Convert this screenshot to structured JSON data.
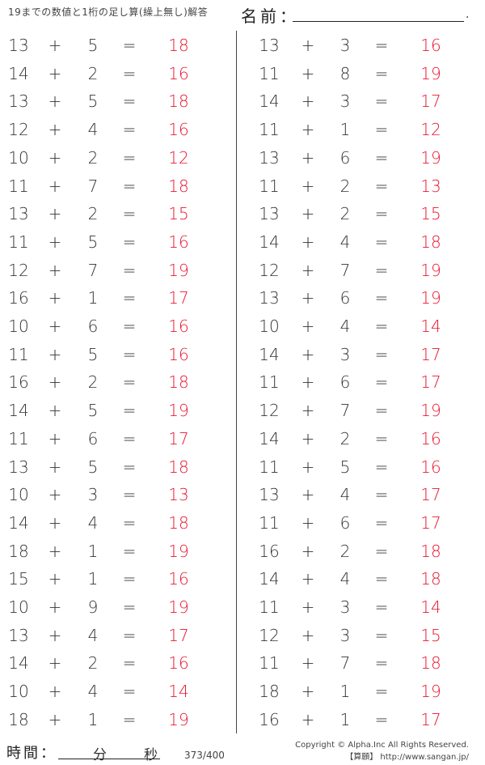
{
  "header": {
    "title": "19までの数値と1桁の足し算(繰上無し)解答",
    "name_label": "名前：",
    "name_end": "."
  },
  "symbols": {
    "plus": "+",
    "equals": "="
  },
  "colors": {
    "answer": "#e8152e",
    "text": "#333333"
  },
  "left": [
    [
      "13",
      "5",
      "18"
    ],
    [
      "14",
      "2",
      "16"
    ],
    [
      "13",
      "5",
      "18"
    ],
    [
      "12",
      "4",
      "16"
    ],
    [
      "10",
      "2",
      "12"
    ],
    [
      "11",
      "7",
      "18"
    ],
    [
      "13",
      "2",
      "15"
    ],
    [
      "11",
      "5",
      "16"
    ],
    [
      "12",
      "7",
      "19"
    ],
    [
      "16",
      "1",
      "17"
    ],
    [
      "10",
      "6",
      "16"
    ],
    [
      "11",
      "5",
      "16"
    ],
    [
      "16",
      "2",
      "18"
    ],
    [
      "14",
      "5",
      "19"
    ],
    [
      "11",
      "6",
      "17"
    ],
    [
      "13",
      "5",
      "18"
    ],
    [
      "10",
      "3",
      "13"
    ],
    [
      "14",
      "4",
      "18"
    ],
    [
      "18",
      "1",
      "19"
    ],
    [
      "15",
      "1",
      "16"
    ],
    [
      "10",
      "9",
      "19"
    ],
    [
      "13",
      "4",
      "17"
    ],
    [
      "14",
      "2",
      "16"
    ],
    [
      "10",
      "4",
      "14"
    ],
    [
      "18",
      "1",
      "19"
    ]
  ],
  "right": [
    [
      "13",
      "3",
      "16"
    ],
    [
      "11",
      "8",
      "19"
    ],
    [
      "14",
      "3",
      "17"
    ],
    [
      "11",
      "1",
      "12"
    ],
    [
      "13",
      "6",
      "19"
    ],
    [
      "11",
      "2",
      "13"
    ],
    [
      "13",
      "2",
      "15"
    ],
    [
      "14",
      "4",
      "18"
    ],
    [
      "12",
      "7",
      "19"
    ],
    [
      "13",
      "6",
      "19"
    ],
    [
      "10",
      "4",
      "14"
    ],
    [
      "14",
      "3",
      "17"
    ],
    [
      "11",
      "6",
      "17"
    ],
    [
      "12",
      "7",
      "19"
    ],
    [
      "14",
      "2",
      "16"
    ],
    [
      "11",
      "5",
      "16"
    ],
    [
      "13",
      "4",
      "17"
    ],
    [
      "11",
      "6",
      "17"
    ],
    [
      "16",
      "2",
      "18"
    ],
    [
      "14",
      "4",
      "18"
    ],
    [
      "11",
      "3",
      "14"
    ],
    [
      "12",
      "3",
      "15"
    ],
    [
      "11",
      "7",
      "18"
    ],
    [
      "18",
      "1",
      "19"
    ],
    [
      "16",
      "1",
      "17"
    ]
  ],
  "footer": {
    "time_label": "時間：",
    "minutes": "分",
    "seconds": "秒",
    "page": "373/400",
    "copyright": "Copyright © Alpha.Inc All Rights Reserved.",
    "site": "【算願】 http://www.sangan.jp/"
  }
}
